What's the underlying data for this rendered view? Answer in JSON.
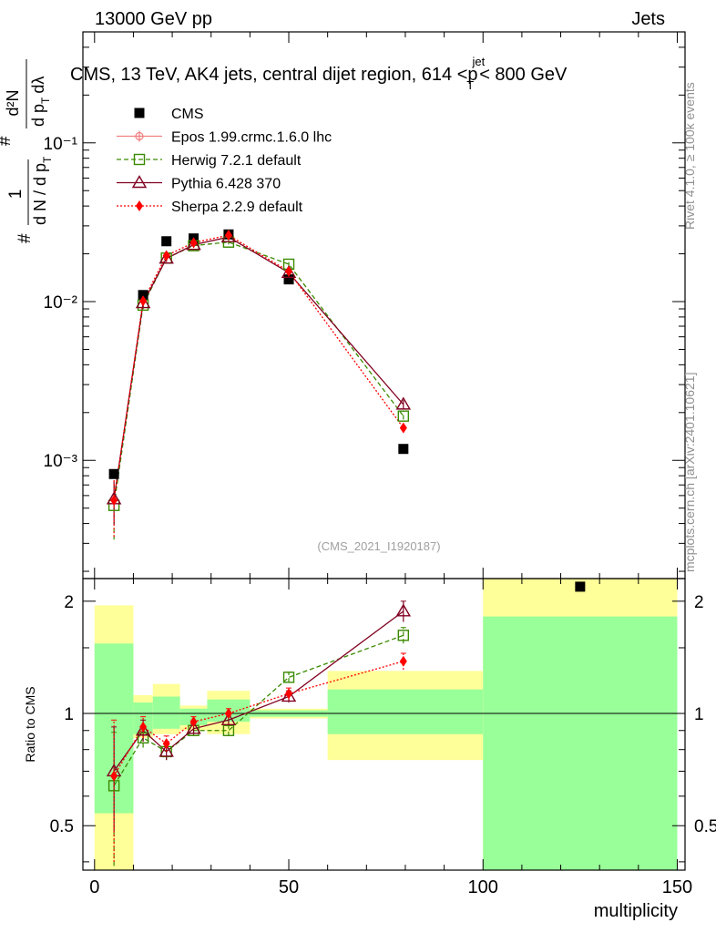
{
  "header": {
    "left": "13000 GeV pp",
    "right": "Jets"
  },
  "side_labels": {
    "rivet": "Rivet 4.1.0, ≥ 100k events",
    "mcplots": "mcplots.cern.ch [arXiv:2401.10621]"
  },
  "chart_data": {
    "type": "scatter",
    "title": {
      "main": "CMS, 13 TeV, AK4 jets, central dijet region, 614 <p",
      "sup": "jet",
      "sub": "T",
      "tail": "< 800 GeV"
    },
    "analysis_id": "(CMS_2021_I1920187)",
    "xlabel": "multiplicity",
    "xlim": [
      -3,
      152
    ],
    "xticks": [
      "0",
      "50",
      "100",
      "150"
    ],
    "upper": {
      "yscale": "log",
      "ylim": [
        0.00018,
        0.5
      ],
      "ylabel": {
        "lead": "#",
        "frac_num": "1",
        "frac_den": "d N / d p",
        "den_sub": "T",
        "frac2_num": "d²N",
        "frac2_den": "d p",
        "frac2_sub": "T",
        "frac2_tail": "dλ",
        "hash": "#"
      },
      "yticks": [
        "10⁻³",
        "10⁻²",
        "10⁻¹"
      ],
      "ytick_values": [
        0.001,
        0.01,
        0.1
      ]
    },
    "ratio": {
      "ylabel": "Ratio to CMS",
      "ylim": [
        0.38,
        2.3
      ],
      "yticks": [
        "0.5",
        "1",
        "2"
      ],
      "ytick_values": [
        0.5,
        1,
        2
      ]
    },
    "bins": [
      {
        "lo": 0,
        "hi": 10,
        "x": 5,
        "band_inner": [
          0.54,
          1.54
        ],
        "band_outer": [
          0.38,
          1.95
        ]
      },
      {
        "lo": 10,
        "hi": 15,
        "x": 12.5,
        "band_inner": [
          0.88,
          1.07
        ],
        "band_outer": [
          0.86,
          1.12
        ]
      },
      {
        "lo": 15,
        "hi": 22,
        "x": 18.5,
        "band_inner": [
          0.91,
          1.11
        ],
        "band_outer": [
          0.88,
          1.2
        ]
      },
      {
        "lo": 22,
        "hi": 29,
        "x": 25.5,
        "band_inner": [
          0.93,
          1.03
        ],
        "band_outer": [
          0.9,
          1.05
        ]
      },
      {
        "lo": 29,
        "hi": 40,
        "x": 34.5,
        "band_inner": [
          0.95,
          1.09
        ],
        "band_outer": [
          0.88,
          1.15
        ]
      },
      {
        "lo": 40,
        "hi": 60,
        "x": 50,
        "band_inner": [
          0.98,
          1.02
        ],
        "band_outer": [
          0.97,
          1.03
        ]
      },
      {
        "lo": 60,
        "hi": 100,
        "x": 79.5,
        "band_inner": [
          0.88,
          1.16
        ],
        "band_outer": [
          0.75,
          1.3
        ]
      },
      {
        "lo": 100,
        "hi": 150,
        "x": 125,
        "band_inner": [
          0.38,
          1.82
        ],
        "band_outer": [
          0.38,
          2.3
        ]
      }
    ],
    "series": [
      {
        "name": "CMS",
        "color": "#000000",
        "marker": "square-filled",
        "x": [
          5,
          12.5,
          18.5,
          25.5,
          34.5,
          50,
          79.5,
          125
        ],
        "values": [
          0.00082,
          0.011,
          0.024,
          0.025,
          0.0265,
          0.0138,
          0.00118,
          0.00016
        ]
      },
      {
        "name": "Epos 1.99.crmc.1.6.0 lhc",
        "color": "#f08080",
        "marker": "circle-cross",
        "dash": "solid",
        "x": [],
        "values": [],
        "ratio": [],
        "ratio_err": []
      },
      {
        "name": "Herwig 7.2.1 default",
        "color": "#3a8a00",
        "marker": "square-open",
        "dash": "dashed",
        "x": [
          5,
          12.5,
          18.5,
          25.5,
          34.5,
          50,
          79.5
        ],
        "values": [
          0.00052,
          0.0095,
          0.0188,
          0.0225,
          0.0237,
          0.0172,
          0.0019
        ],
        "ratio": [
          0.64,
          0.86,
          0.79,
          0.9,
          0.9,
          1.25,
          1.62
        ],
        "ratio_err": [
          0.25,
          0.05,
          0.04,
          0.03,
          0.03,
          0.04,
          0.08
        ]
      },
      {
        "name": "Pythia 6.428 370",
        "color": "#800020",
        "marker": "triangle-open",
        "dash": "solid",
        "x": [
          5,
          12.5,
          18.5,
          25.5,
          34.5,
          50,
          79.5
        ],
        "values": [
          0.00057,
          0.0098,
          0.0187,
          0.0228,
          0.0255,
          0.0152,
          0.00225
        ],
        "ratio": [
          0.7,
          0.9,
          0.79,
          0.91,
          0.96,
          1.11,
          1.88
        ],
        "ratio_err": [
          0.22,
          0.06,
          0.04,
          0.03,
          0.03,
          0.04,
          0.12
        ]
      },
      {
        "name": "Sherpa 2.2.9 default",
        "color": "#ff0000",
        "marker": "diamond-filled",
        "dash": "dotted",
        "x": [
          5,
          12.5,
          18.5,
          25.5,
          34.5,
          50,
          79.5
        ],
        "values": [
          0.00056,
          0.0101,
          0.0195,
          0.0235,
          0.0262,
          0.0155,
          0.0016
        ],
        "ratio": [
          0.68,
          0.92,
          0.83,
          0.95,
          1.0,
          1.13,
          1.38
        ],
        "ratio_err": [
          0.28,
          0.06,
          0.04,
          0.03,
          0.03,
          0.04,
          0.07
        ]
      }
    ]
  }
}
